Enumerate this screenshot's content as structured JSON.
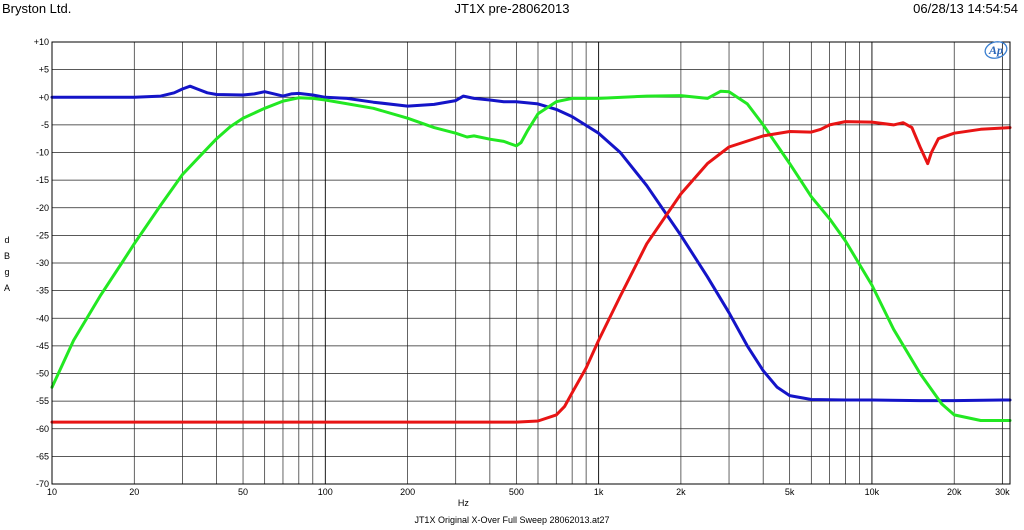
{
  "header": {
    "left": "Bryston Ltd.",
    "center": "JT1X pre-28062013",
    "right": "06/28/13 14:54:54"
  },
  "footer": "JT1X Original X-Over Full Sweep 28062013.at27",
  "logo_text": "Ap",
  "chart_data": {
    "type": "line",
    "xlabel": "Hz",
    "ylabel": [
      "d",
      "B",
      "g",
      "A"
    ],
    "xscale": "log",
    "xlim": [
      10,
      32000
    ],
    "ylim": [
      -70,
      10
    ],
    "grid": true,
    "x_tick_labels": [
      {
        "v": 10,
        "t": "10"
      },
      {
        "v": 20,
        "t": "20"
      },
      {
        "v": 50,
        "t": "50"
      },
      {
        "v": 100,
        "t": "100"
      },
      {
        "v": 200,
        "t": "200"
      },
      {
        "v": 500,
        "t": "500"
      },
      {
        "v": 1000,
        "t": "1k"
      },
      {
        "v": 2000,
        "t": "2k"
      },
      {
        "v": 5000,
        "t": "5k"
      },
      {
        "v": 10000,
        "t": "10k"
      },
      {
        "v": 20000,
        "t": "20k"
      },
      {
        "v": 30000,
        "t": "30k"
      }
    ],
    "y_tick_labels": [
      {
        "v": 10,
        "t": "+10"
      },
      {
        "v": 5,
        "t": "+5"
      },
      {
        "v": 0,
        "t": "+0"
      },
      {
        "v": -5,
        "t": "-5"
      },
      {
        "v": -10,
        "t": "-10"
      },
      {
        "v": -15,
        "t": "-15"
      },
      {
        "v": -20,
        "t": "-20"
      },
      {
        "v": -25,
        "t": "-25"
      },
      {
        "v": -30,
        "t": "-30"
      },
      {
        "v": -35,
        "t": "-35"
      },
      {
        "v": -40,
        "t": "-40"
      },
      {
        "v": -45,
        "t": "-45"
      },
      {
        "v": -50,
        "t": "-50"
      },
      {
        "v": -55,
        "t": "-55"
      },
      {
        "v": -60,
        "t": "-60"
      },
      {
        "v": -65,
        "t": "-65"
      },
      {
        "v": -70,
        "t": "-70"
      }
    ],
    "series": [
      {
        "color": "#1414c8",
        "points": [
          [
            10,
            0.0
          ],
          [
            20,
            0.0
          ],
          [
            25,
            0.2
          ],
          [
            28,
            0.8
          ],
          [
            30,
            1.5
          ],
          [
            32,
            2.0
          ],
          [
            34,
            1.5
          ],
          [
            37,
            0.8
          ],
          [
            40,
            0.5
          ],
          [
            50,
            0.4
          ],
          [
            55,
            0.6
          ],
          [
            60,
            1.0
          ],
          [
            65,
            0.6
          ],
          [
            70,
            0.2
          ],
          [
            75,
            0.6
          ],
          [
            80,
            0.7
          ],
          [
            90,
            0.4
          ],
          [
            100,
            0.0
          ],
          [
            120,
            -0.2
          ],
          [
            150,
            -0.9
          ],
          [
            200,
            -1.6
          ],
          [
            250,
            -1.3
          ],
          [
            300,
            -0.6
          ],
          [
            320,
            0.2
          ],
          [
            350,
            -0.2
          ],
          [
            400,
            -0.5
          ],
          [
            450,
            -0.8
          ],
          [
            500,
            -0.8
          ],
          [
            600,
            -1.2
          ],
          [
            700,
            -2.2
          ],
          [
            800,
            -3.5
          ],
          [
            1000,
            -6.5
          ],
          [
            1200,
            -10
          ],
          [
            1500,
            -16
          ],
          [
            2000,
            -25
          ],
          [
            2500,
            -32.5
          ],
          [
            3000,
            -39
          ],
          [
            3500,
            -45
          ],
          [
            4000,
            -49.5
          ],
          [
            4500,
            -52.5
          ],
          [
            5000,
            -54
          ],
          [
            6000,
            -54.7
          ],
          [
            8000,
            -54.8
          ],
          [
            10000,
            -54.8
          ],
          [
            15000,
            -54.9
          ],
          [
            20000,
            -54.9
          ],
          [
            30000,
            -54.8
          ],
          [
            32000,
            -54.8
          ]
        ]
      },
      {
        "color": "#22e822",
        "points": [
          [
            10,
            -52.5
          ],
          [
            12,
            -44
          ],
          [
            15,
            -36
          ],
          [
            18,
            -30
          ],
          [
            20,
            -26.5
          ],
          [
            25,
            -19.5
          ],
          [
            30,
            -14
          ],
          [
            35,
            -10.5
          ],
          [
            40,
            -7.5
          ],
          [
            45,
            -5.3
          ],
          [
            50,
            -3.8
          ],
          [
            60,
            -2.0
          ],
          [
            70,
            -0.7
          ],
          [
            80,
            -0.1
          ],
          [
            90,
            -0.2
          ],
          [
            100,
            -0.5
          ],
          [
            150,
            -2.0
          ],
          [
            200,
            -3.8
          ],
          [
            250,
            -5.5
          ],
          [
            300,
            -6.5
          ],
          [
            330,
            -7.2
          ],
          [
            350,
            -7.0
          ],
          [
            400,
            -7.6
          ],
          [
            450,
            -8.0
          ],
          [
            500,
            -8.8
          ],
          [
            520,
            -8.2
          ],
          [
            550,
            -6.0
          ],
          [
            600,
            -3.0
          ],
          [
            700,
            -0.8
          ],
          [
            800,
            -0.2
          ],
          [
            1000,
            -0.2
          ],
          [
            1500,
            0.2
          ],
          [
            2000,
            0.3
          ],
          [
            2500,
            -0.2
          ],
          [
            2800,
            1.1
          ],
          [
            3000,
            1.0
          ],
          [
            3500,
            -1.2
          ],
          [
            4000,
            -5.0
          ],
          [
            5000,
            -12
          ],
          [
            6000,
            -18
          ],
          [
            7000,
            -22
          ],
          [
            8000,
            -26
          ],
          [
            10000,
            -34
          ],
          [
            12000,
            -42
          ],
          [
            15000,
            -50
          ],
          [
            18000,
            -55.5
          ],
          [
            20000,
            -57.5
          ],
          [
            25000,
            -58.5
          ],
          [
            32000,
            -58.5
          ]
        ]
      },
      {
        "color": "#e81414",
        "points": [
          [
            10,
            -58.8
          ],
          [
            20,
            -58.8
          ],
          [
            50,
            -58.8
          ],
          [
            100,
            -58.8
          ],
          [
            200,
            -58.8
          ],
          [
            500,
            -58.8
          ],
          [
            600,
            -58.6
          ],
          [
            700,
            -57.5
          ],
          [
            750,
            -56
          ],
          [
            800,
            -53.5
          ],
          [
            900,
            -49
          ],
          [
            1000,
            -44
          ],
          [
            1200,
            -36
          ],
          [
            1500,
            -26.5
          ],
          [
            2000,
            -17.5
          ],
          [
            2500,
            -12
          ],
          [
            3000,
            -9.0
          ],
          [
            4000,
            -7.0
          ],
          [
            5000,
            -6.2
          ],
          [
            6000,
            -6.3
          ],
          [
            6500,
            -5.8
          ],
          [
            7000,
            -5.0
          ],
          [
            8000,
            -4.4
          ],
          [
            10000,
            -4.5
          ],
          [
            12000,
            -5.0
          ],
          [
            13000,
            -4.6
          ],
          [
            14000,
            -5.5
          ],
          [
            15000,
            -9.0
          ],
          [
            16000,
            -12
          ],
          [
            16500,
            -10
          ],
          [
            17500,
            -7.5
          ],
          [
            20000,
            -6.5
          ],
          [
            25000,
            -5.8
          ],
          [
            32000,
            -5.5
          ]
        ]
      }
    ]
  }
}
